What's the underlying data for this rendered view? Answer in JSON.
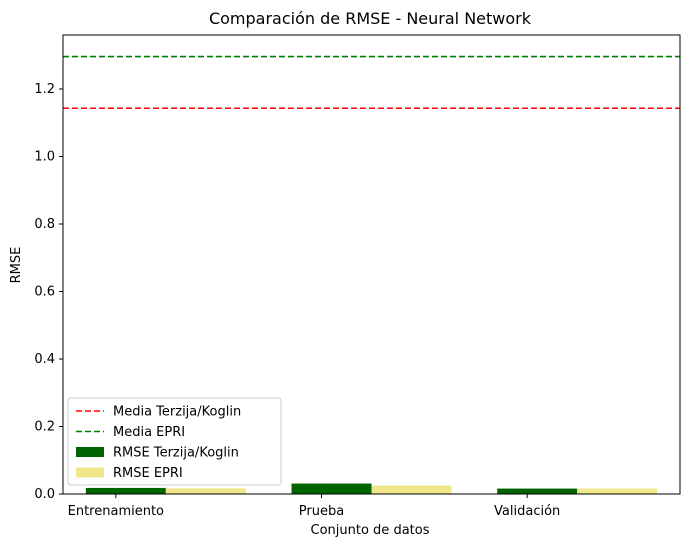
{
  "chart_data": {
    "type": "bar",
    "title": "Comparación de RMSE - Neural Network",
    "xlabel": "Conjunto de datos",
    "ylabel": "RMSE",
    "categories": [
      "Entrenamiento",
      "Prueba",
      "Validación"
    ],
    "ylim": [
      0,
      1.36
    ],
    "yticks": [
      "0.0",
      "0.2",
      "0.4",
      "0.6",
      "0.8",
      "1.0",
      "1.2"
    ],
    "grid": false,
    "legend_position": "lower-left",
    "series": [
      {
        "name": "RMSE Terzija/Koglin",
        "color": "#006400",
        "values": [
          0.018,
          0.031,
          0.016
        ]
      },
      {
        "name": "RMSE EPRI",
        "color": "#f0e68c",
        "values": [
          0.017,
          0.025,
          0.016
        ]
      }
    ],
    "reference_lines": [
      {
        "name": "Media Terzija/Koglin",
        "value": 1.143,
        "color": "#ff0000",
        "style": "dashed"
      },
      {
        "name": "Media EPRI",
        "value": 1.296,
        "color": "#008000",
        "style": "dashed"
      }
    ]
  }
}
